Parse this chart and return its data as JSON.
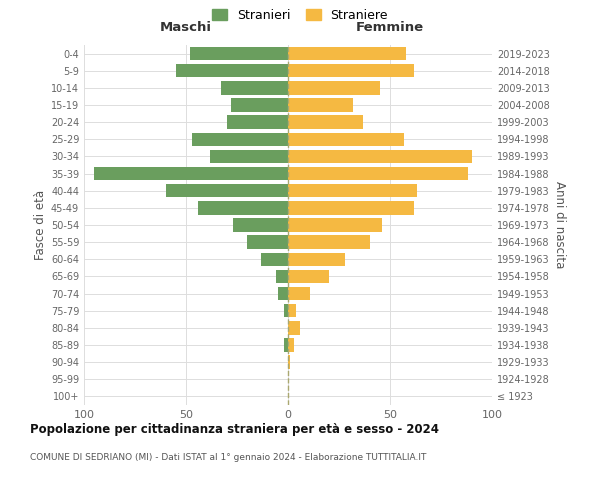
{
  "age_groups": [
    "100+",
    "95-99",
    "90-94",
    "85-89",
    "80-84",
    "75-79",
    "70-74",
    "65-69",
    "60-64",
    "55-59",
    "50-54",
    "45-49",
    "40-44",
    "35-39",
    "30-34",
    "25-29",
    "20-24",
    "15-19",
    "10-14",
    "5-9",
    "0-4"
  ],
  "birth_years": [
    "≤ 1923",
    "1924-1928",
    "1929-1933",
    "1934-1938",
    "1939-1943",
    "1944-1948",
    "1949-1953",
    "1954-1958",
    "1959-1963",
    "1964-1968",
    "1969-1973",
    "1974-1978",
    "1979-1983",
    "1984-1988",
    "1989-1993",
    "1994-1998",
    "1999-2003",
    "2004-2008",
    "2009-2013",
    "2014-2018",
    "2019-2023"
  ],
  "maschi": [
    0,
    0,
    0,
    2,
    0,
    2,
    5,
    6,
    13,
    20,
    27,
    44,
    60,
    95,
    38,
    47,
    30,
    28,
    33,
    55,
    48
  ],
  "femmine": [
    0,
    0,
    1,
    3,
    6,
    4,
    11,
    20,
    28,
    40,
    46,
    62,
    63,
    88,
    90,
    57,
    37,
    32,
    45,
    62,
    58
  ],
  "color_maschi": "#6a9e5e",
  "color_femmine": "#f5b942",
  "title": "Popolazione per cittadinanza straniera per età e sesso - 2024",
  "subtitle": "COMUNE DI SEDRIANO (MI) - Dati ISTAT al 1° gennaio 2024 - Elaborazione TUTTITALIA.IT",
  "ylabel_left": "Fasce di età",
  "ylabel_right": "Anni di nascita",
  "label_maschi": "Maschi",
  "label_femmine": "Femmine",
  "legend_maschi": "Stranieri",
  "legend_femmine": "Straniere",
  "xlim": 100,
  "background_color": "#ffffff",
  "grid_color": "#dddddd"
}
